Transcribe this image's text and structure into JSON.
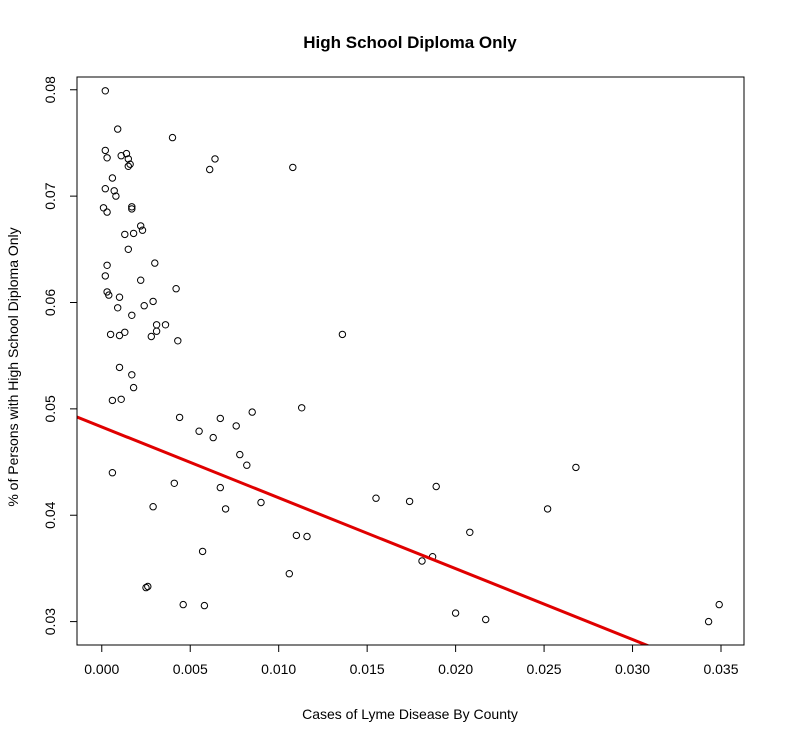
{
  "chart_data": {
    "type": "scatter",
    "title": "High School Diploma Only",
    "xlabel": "Cases of Lyme Disease By County",
    "ylabel": "% of Persons with High School Diploma Only",
    "xlim": [
      -0.0014,
      0.0363
    ],
    "ylim": [
      0.0278,
      0.0812
    ],
    "x_ticks": [
      0.0,
      0.005,
      0.01,
      0.015,
      0.02,
      0.025,
      0.03,
      0.035
    ],
    "x_tick_labels": [
      "0.000",
      "0.005",
      "0.010",
      "0.015",
      "0.020",
      "0.025",
      "0.030",
      "0.035"
    ],
    "y_ticks": [
      0.03,
      0.04,
      0.05,
      0.06,
      0.07,
      0.08
    ],
    "y_tick_labels": [
      "0.03",
      "0.04",
      "0.05",
      "0.06",
      "0.07",
      "0.08"
    ],
    "grid": false,
    "fit_line": {
      "intercept": 0.0483,
      "slope": -0.6662,
      "color": "#e00000"
    },
    "points": [
      [
        0.0002,
        0.0799
      ],
      [
        0.0009,
        0.0763
      ],
      [
        0.004,
        0.0755
      ],
      [
        0.0002,
        0.0743
      ],
      [
        0.0003,
        0.0736
      ],
      [
        0.0011,
        0.0738
      ],
      [
        0.0014,
        0.074
      ],
      [
        0.0015,
        0.0735
      ],
      [
        0.0016,
        0.073
      ],
      [
        0.0015,
        0.0728
      ],
      [
        0.0064,
        0.0735
      ],
      [
        0.0061,
        0.0725
      ],
      [
        0.0108,
        0.0727
      ],
      [
        0.0006,
        0.0717
      ],
      [
        0.0002,
        0.0707
      ],
      [
        0.0007,
        0.0705
      ],
      [
        0.0008,
        0.07
      ],
      [
        0.0001,
        0.0689
      ],
      [
        0.0003,
        0.0685
      ],
      [
        0.0017,
        0.069
      ],
      [
        0.0017,
        0.0688
      ],
      [
        0.0022,
        0.0672
      ],
      [
        0.0023,
        0.0668
      ],
      [
        0.0013,
        0.0664
      ],
      [
        0.0018,
        0.0665
      ],
      [
        0.0015,
        0.065
      ],
      [
        0.0003,
        0.0635
      ],
      [
        0.003,
        0.0637
      ],
      [
        0.0002,
        0.0625
      ],
      [
        0.0022,
        0.0621
      ],
      [
        0.0042,
        0.0613
      ],
      [
        0.0003,
        0.061
      ],
      [
        0.0004,
        0.0607
      ],
      [
        0.001,
        0.0605
      ],
      [
        0.0029,
        0.0601
      ],
      [
        0.0009,
        0.0595
      ],
      [
        0.0024,
        0.0597
      ],
      [
        0.0017,
        0.0588
      ],
      [
        0.0031,
        0.0579
      ],
      [
        0.0036,
        0.0579
      ],
      [
        0.0031,
        0.0573
      ],
      [
        0.0005,
        0.057
      ],
      [
        0.001,
        0.0569
      ],
      [
        0.0013,
        0.0572
      ],
      [
        0.0028,
        0.0568
      ],
      [
        0.0043,
        0.0564
      ],
      [
        0.0136,
        0.057
      ],
      [
        0.001,
        0.0539
      ],
      [
        0.0017,
        0.0532
      ],
      [
        0.0018,
        0.052
      ],
      [
        0.0006,
        0.0508
      ],
      [
        0.0011,
        0.0509
      ],
      [
        0.0113,
        0.0501
      ],
      [
        0.0085,
        0.0497
      ],
      [
        0.0044,
        0.0492
      ],
      [
        0.0067,
        0.0491
      ],
      [
        0.0076,
        0.0484
      ],
      [
        0.0055,
        0.0479
      ],
      [
        0.0063,
        0.0473
      ],
      [
        0.0078,
        0.0457
      ],
      [
        0.0082,
        0.0447
      ],
      [
        0.0268,
        0.0445
      ],
      [
        0.0006,
        0.044
      ],
      [
        0.0041,
        0.043
      ],
      [
        0.0067,
        0.0426
      ],
      [
        0.0189,
        0.0427
      ],
      [
        0.0155,
        0.0416
      ],
      [
        0.0174,
        0.0413
      ],
      [
        0.009,
        0.0412
      ],
      [
        0.0029,
        0.0408
      ],
      [
        0.007,
        0.0406
      ],
      [
        0.0252,
        0.0406
      ],
      [
        0.0208,
        0.0384
      ],
      [
        0.011,
        0.0381
      ],
      [
        0.0116,
        0.038
      ],
      [
        0.0057,
        0.0366
      ],
      [
        0.0187,
        0.0361
      ],
      [
        0.0181,
        0.0357
      ],
      [
        0.0106,
        0.0345
      ],
      [
        0.0026,
        0.0333
      ],
      [
        0.0025,
        0.0332
      ],
      [
        0.0046,
        0.0316
      ],
      [
        0.0058,
        0.0315
      ],
      [
        0.0349,
        0.0316
      ],
      [
        0.02,
        0.0308
      ],
      [
        0.0217,
        0.0302
      ],
      [
        0.0343,
        0.03
      ]
    ]
  }
}
